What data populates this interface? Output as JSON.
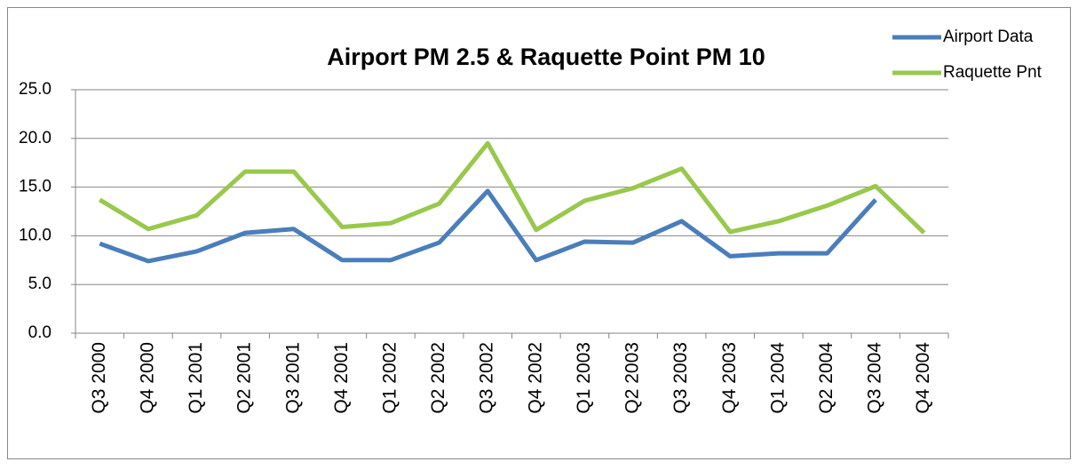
{
  "chart_data": {
    "type": "line",
    "title": "Airport PM 2.5 & Raquette Point PM 10",
    "categories": [
      "Q3 2000",
      "Q4 2000",
      "Q1 2001",
      "Q2 2001",
      "Q3 2001",
      "Q4 2001",
      "Q1 2002",
      "Q2 2002",
      "Q3 2002",
      "Q4 2002",
      "Q1 2003",
      "Q2 2003",
      "Q3 2003",
      "Q4 2003",
      "Q1 2004",
      "Q2 2004",
      "Q3 2004",
      "Q4 2004"
    ],
    "series": [
      {
        "name": "Airport Data",
        "color": "#4a7ebb",
        "values": [
          9.2,
          7.4,
          8.4,
          10.3,
          10.7,
          7.5,
          7.5,
          9.3,
          14.6,
          7.5,
          9.4,
          9.3,
          11.5,
          7.9,
          8.2,
          8.2,
          13.7,
          null
        ]
      },
      {
        "name": "Raquette Pnt",
        "color": "#98c84c",
        "values": [
          13.7,
          10.7,
          12.1,
          16.6,
          16.6,
          10.9,
          11.3,
          13.3,
          19.5,
          10.6,
          13.6,
          14.9,
          16.9,
          10.4,
          11.5,
          13.1,
          15.1,
          10.3
        ]
      }
    ],
    "ylim": [
      0,
      25
    ],
    "yticks": [
      {
        "value": 0,
        "label": "0.0"
      },
      {
        "value": 5,
        "label": "5.0"
      },
      {
        "value": 10,
        "label": "10.0"
      },
      {
        "value": 15,
        "label": "15.0"
      },
      {
        "value": 20,
        "label": "20.0"
      },
      {
        "value": 25,
        "label": "25.0"
      }
    ],
    "grid": true,
    "legend": "top-right"
  }
}
